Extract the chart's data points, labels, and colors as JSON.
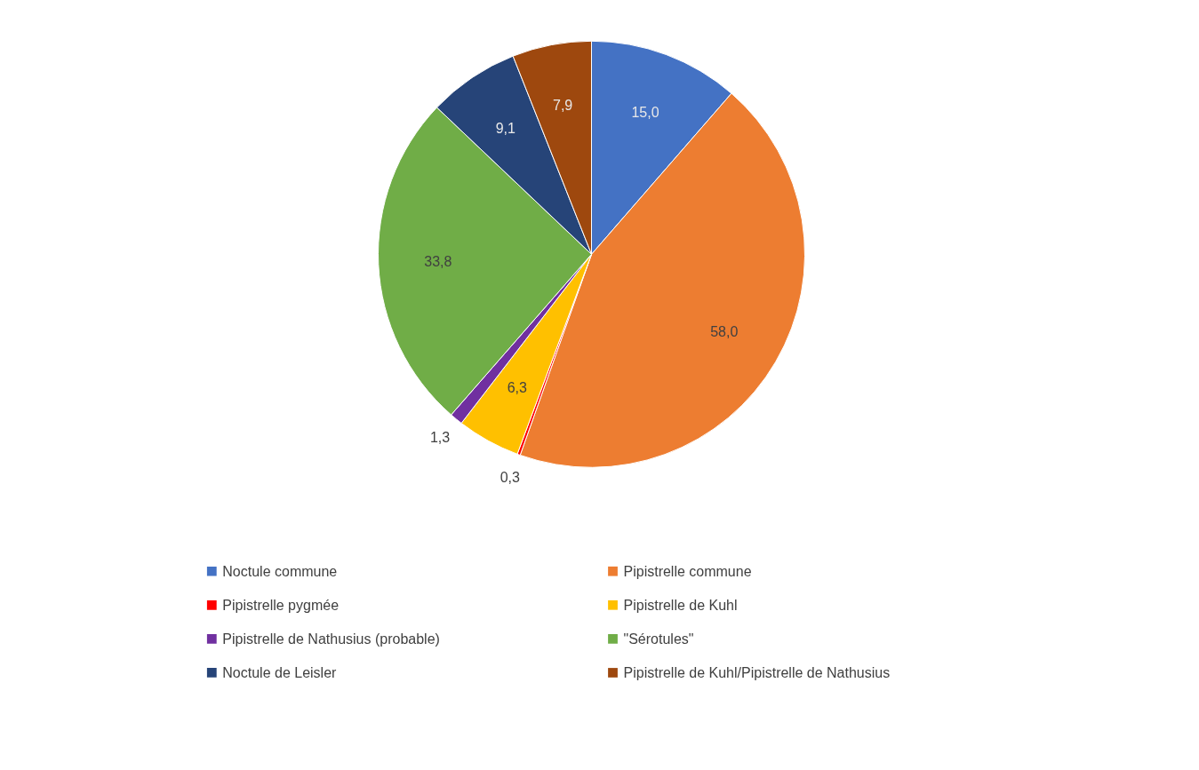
{
  "chart_data": {
    "type": "pie",
    "categories": [
      "Noctule commune",
      "Pipistrelle commune",
      "Pipistrelle pygmée",
      "Pipistrelle de Kuhl",
      "Pipistrelle de Nathusius (probable)",
      "\"Sérotules\"",
      "Noctule de Leisler",
      "Pipistrelle de Kuhl/Pipistrelle de Nathusius"
    ],
    "values": [
      15.0,
      58.0,
      0.3,
      6.3,
      1.3,
      33.8,
      9.1,
      7.9
    ],
    "colors": [
      "#4472c4",
      "#ed7d31",
      "#ff0000",
      "#ffc000",
      "#7030a0",
      "#70ad47",
      "#264478",
      "#9e480e"
    ],
    "value_labels": [
      "15,0",
      "58,0",
      "0,3",
      "6,3",
      "1,3",
      "33,8",
      "9,1",
      "7,9"
    ],
    "legend": "bottom"
  }
}
